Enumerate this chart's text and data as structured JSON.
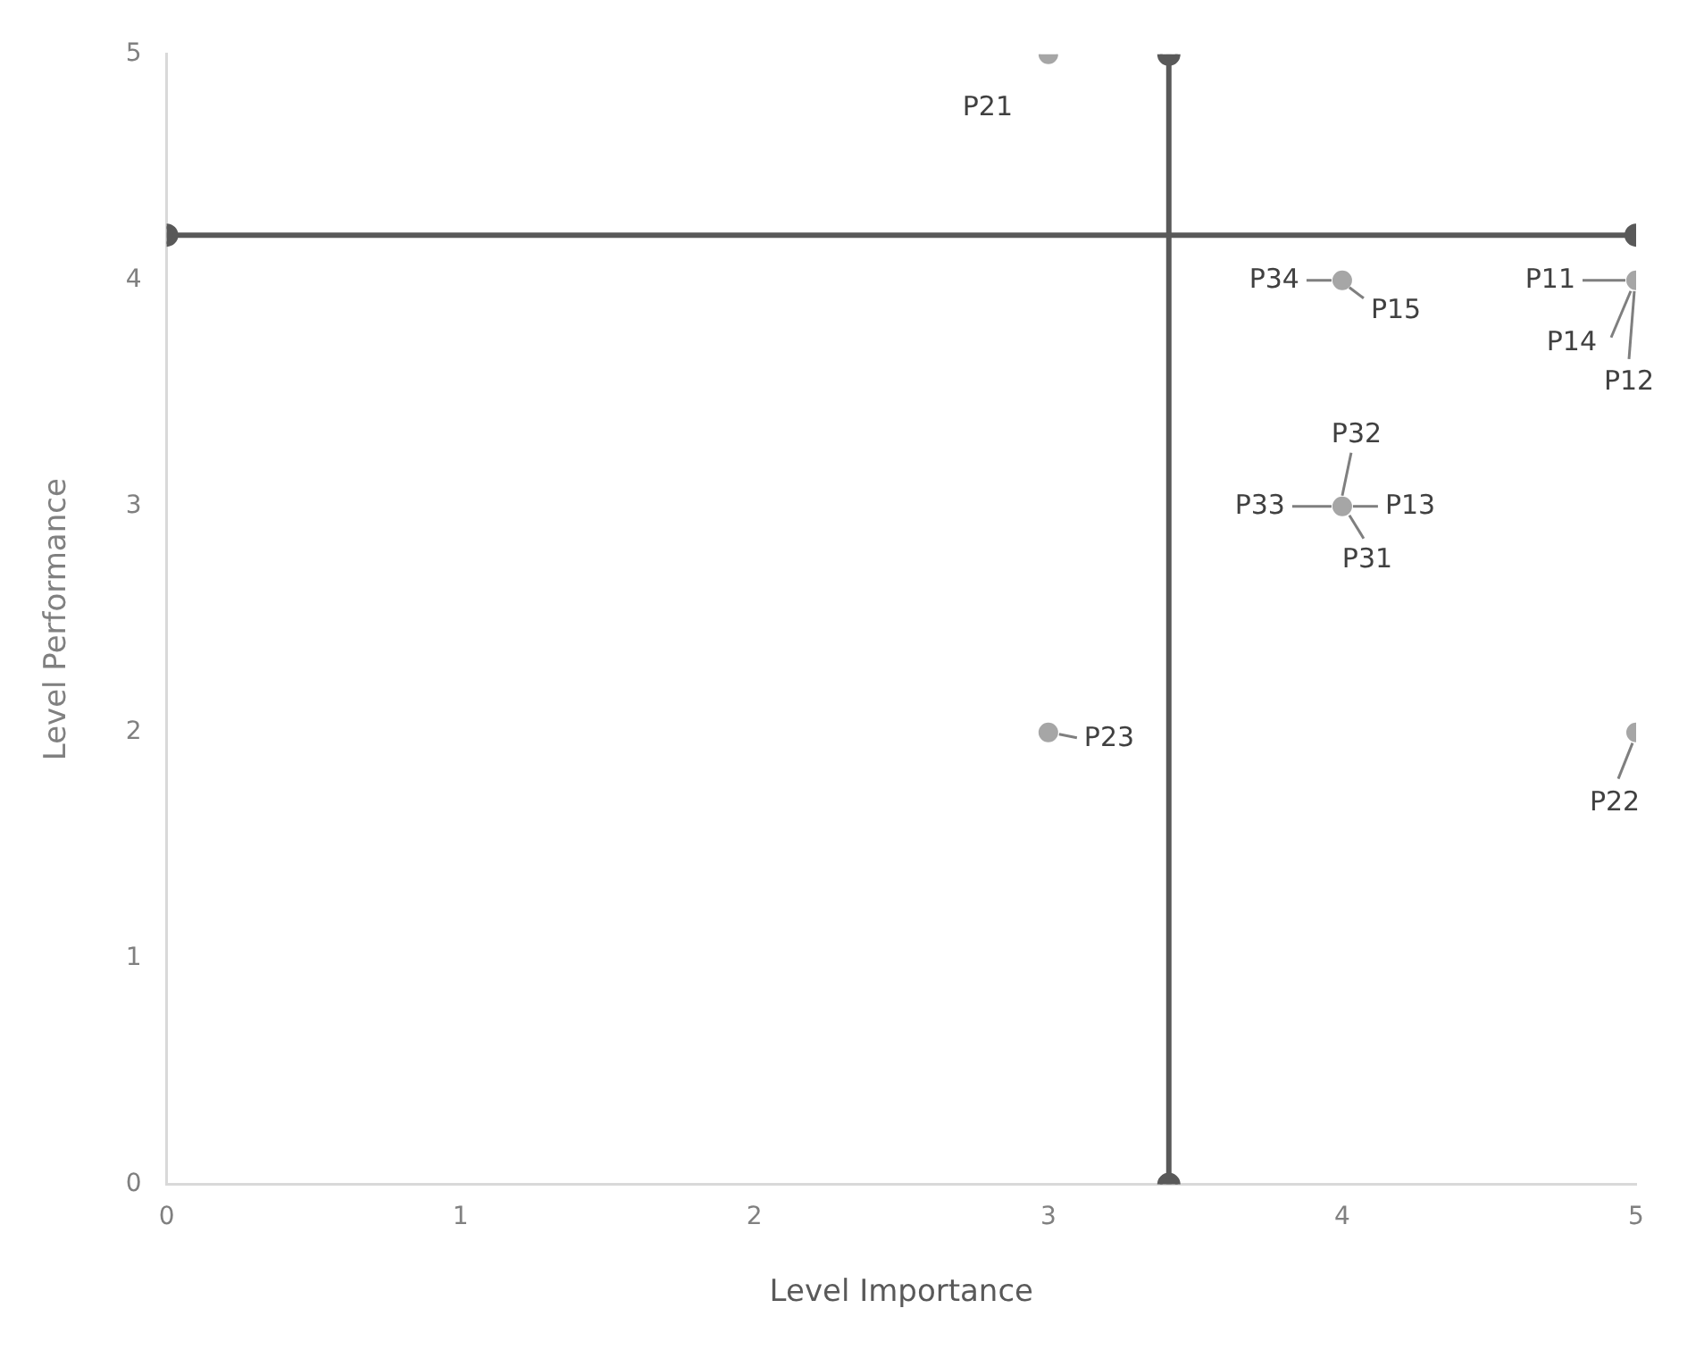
{
  "chart_data": {
    "type": "scatter",
    "xlabel": "Level Importance",
    "ylabel": "Level Performance",
    "xlim": [
      0,
      5
    ],
    "ylim": [
      0,
      5
    ],
    "xticks": [
      0,
      1,
      2,
      3,
      4,
      5
    ],
    "yticks": [
      0,
      1,
      2,
      3,
      4,
      5
    ],
    "grid": false,
    "legend": false,
    "marker": "circle",
    "line_style": "solid",
    "series": [
      {
        "type": "scatter",
        "color": "#a6a6a6",
        "x": [
          3,
          3,
          4,
          4,
          5,
          5
        ],
        "values": [
          5,
          2,
          4,
          3,
          4,
          2
        ]
      },
      {
        "type": "line",
        "color": "#595959",
        "x": [
          0,
          5
        ],
        "values": [
          4.2,
          4.2
        ]
      },
      {
        "type": "line",
        "color": "#595959",
        "x": [
          3.41,
          3.41
        ],
        "values": [
          0,
          5
        ]
      }
    ],
    "annotations": [
      {
        "text": "P21",
        "x": 3,
        "y": 5
      },
      {
        "text": "P34",
        "x": 4,
        "y": 4
      },
      {
        "text": "P15",
        "x": 4,
        "y": 4
      },
      {
        "text": "P11",
        "x": 5,
        "y": 4
      },
      {
        "text": "P14",
        "x": 5,
        "y": 4
      },
      {
        "text": "P12",
        "x": 5,
        "y": 4
      },
      {
        "text": "P32",
        "x": 4,
        "y": 3
      },
      {
        "text": "P33",
        "x": 4,
        "y": 3
      },
      {
        "text": "P13",
        "x": 4,
        "y": 3
      },
      {
        "text": "P31",
        "x": 4,
        "y": 3
      },
      {
        "text": "P23",
        "x": 3,
        "y": 2
      },
      {
        "text": "P22",
        "x": 5,
        "y": 2
      }
    ]
  }
}
